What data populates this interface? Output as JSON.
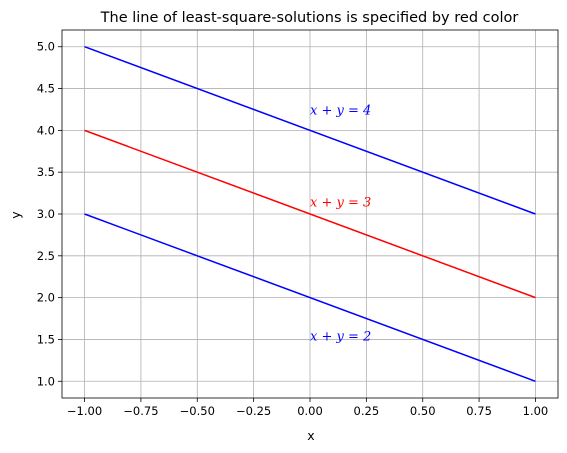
{
  "chart_data": {
    "type": "line",
    "title": "The line of least-square-solutions is specified by red color",
    "xlabel": "x",
    "ylabel": "y",
    "xlim": [
      -1.1,
      1.1
    ],
    "ylim": [
      0.8,
      5.2
    ],
    "xticks": [
      -1.0,
      -0.75,
      -0.5,
      -0.25,
      0.0,
      0.25,
      0.5,
      0.75,
      1.0
    ],
    "xtick_labels": [
      "−1.00",
      "−0.75",
      "−0.50",
      "−0.25",
      "0.00",
      "0.25",
      "0.50",
      "0.75",
      "1.00"
    ],
    "yticks": [
      1.0,
      1.5,
      2.0,
      2.5,
      3.0,
      3.5,
      4.0,
      4.5,
      5.0
    ],
    "ytick_labels": [
      "1.0",
      "1.5",
      "2.0",
      "2.5",
      "3.0",
      "3.5",
      "4.0",
      "4.5",
      "5.0"
    ],
    "grid": true,
    "series": [
      {
        "x": [
          -1,
          1
        ],
        "y": [
          5,
          3
        ],
        "color": "#0000ff"
      },
      {
        "x": [
          -1,
          1
        ],
        "y": [
          4,
          2
        ],
        "color": "#ff0000"
      },
      {
        "x": [
          -1,
          1
        ],
        "y": [
          3,
          1
        ],
        "color": "#0000ff"
      }
    ],
    "annotations": [
      {
        "text": "x + y = 4",
        "x": 0.0,
        "y": 4.2,
        "color": "#0000ff"
      },
      {
        "text": "x + y = 3",
        "x": 0.0,
        "y": 3.1,
        "color": "#ff0000"
      },
      {
        "text": "x + y = 2",
        "x": 0.0,
        "y": 1.5,
        "color": "#0000ff"
      }
    ]
  }
}
